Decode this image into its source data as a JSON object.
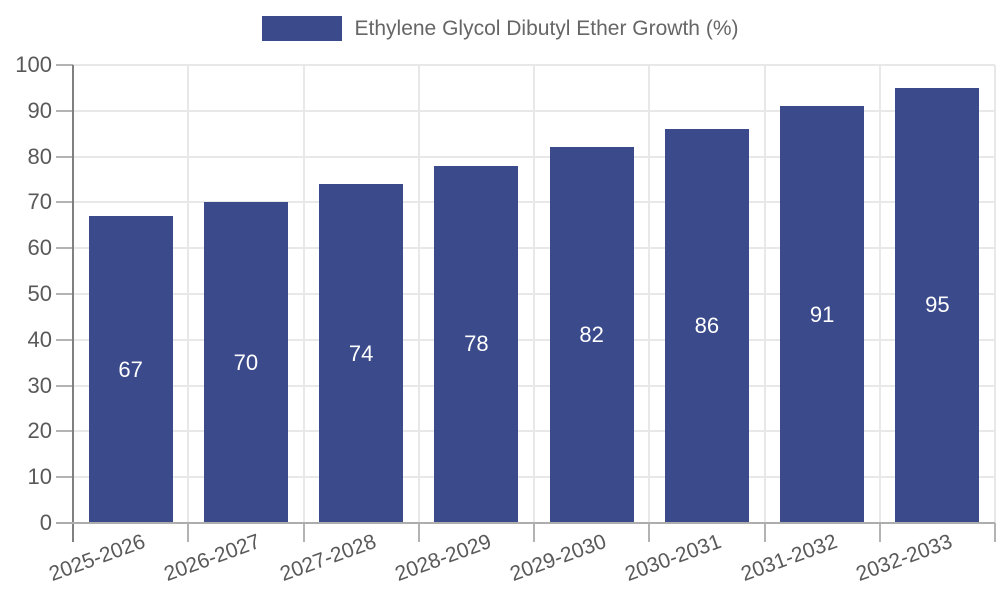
{
  "chart_data": {
    "type": "bar",
    "title": "Ethylene Glycol Dibutyl Ether Growth (%)",
    "categories": [
      "2025-2026",
      "2026-2027",
      "2027-2028",
      "2028-2029",
      "2029-2030",
      "2030-2031",
      "2031-2032",
      "2032-2033"
    ],
    "values": [
      67,
      70,
      74,
      78,
      82,
      86,
      91,
      95
    ],
    "xlabel": "",
    "ylabel": "",
    "ylim": [
      0,
      100
    ],
    "yticks": [
      0,
      10,
      20,
      30,
      40,
      50,
      60,
      70,
      80,
      90,
      100
    ],
    "grid": true,
    "legend_position": "top-center",
    "bar_color": "#3A4A8B",
    "value_label_color": "#FFFFFF",
    "show_value_labels": true
  },
  "legend": {
    "label": "Ethylene Glycol Dibutyl Ether Growth (%)",
    "swatch_color": "#3A4A8B"
  },
  "colors": {
    "grid": "#E8E8E8",
    "axis_y": "#808080",
    "axis_x": "#ADADAD",
    "tick": "#B3B3B3",
    "tick_label": "#595959",
    "legend_text": "#666666",
    "background": "#FFFFFF"
  }
}
